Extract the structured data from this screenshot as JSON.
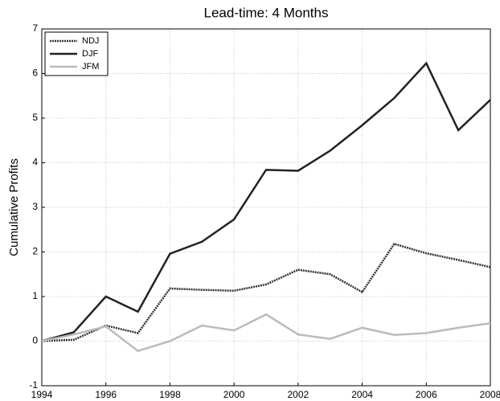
{
  "chart_data": {
    "type": "line",
    "title": "Lead-time: 4 Months",
    "y_label": "Cumulative Profits",
    "x": [
      1994,
      1995,
      1996,
      1997,
      1998,
      1999,
      2000,
      2001,
      2002,
      2003,
      2004,
      2005,
      2006,
      2007,
      2008
    ],
    "series": [
      {
        "name": "NDJ",
        "color": "#333333",
        "style": "dotted",
        "values": [
          0,
          0.03,
          0.35,
          0.18,
          1.18,
          1.15,
          1.13,
          1.27,
          1.6,
          1.5,
          1.1,
          2.18,
          1.97,
          1.82,
          1.66
        ]
      },
      {
        "name": "DJF",
        "color": "#222222",
        "style": "solid",
        "values": [
          0,
          0.2,
          1.0,
          0.66,
          1.96,
          2.23,
          2.73,
          3.84,
          3.82,
          4.27,
          4.84,
          5.45,
          6.23,
          4.73,
          5.41
        ]
      },
      {
        "name": "JFM",
        "color": "#bbbbbb",
        "style": "solid",
        "values": [
          0,
          0.15,
          0.33,
          -0.22,
          0.0,
          0.35,
          0.24,
          0.6,
          0.15,
          0.05,
          0.3,
          0.14,
          0.18,
          0.3,
          0.4
        ]
      }
    ],
    "xlim": [
      1994,
      2008
    ],
    "xticks": [
      1994,
      1996,
      1998,
      2000,
      2002,
      2004,
      2006,
      2008
    ],
    "ylim": [
      -1,
      7
    ],
    "yticks": [
      -1,
      0,
      1,
      2,
      3,
      4,
      5,
      6,
      7
    ],
    "grid": true,
    "legend": "upper-left"
  }
}
